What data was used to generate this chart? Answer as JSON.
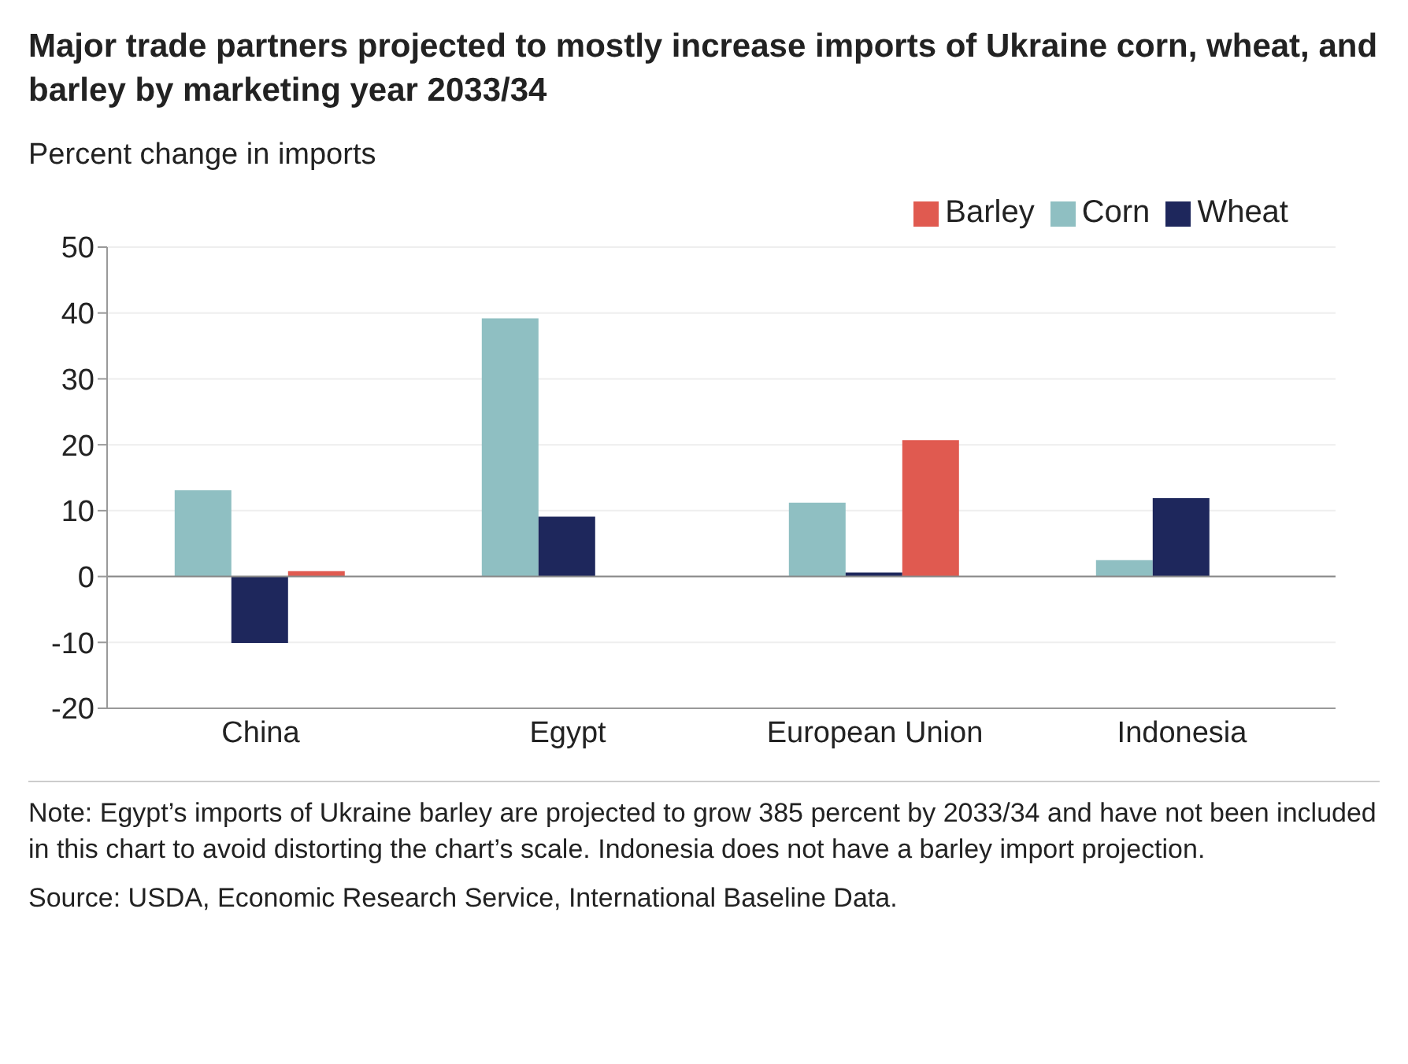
{
  "chart_data": {
    "type": "bar",
    "title": "Major trade partners projected to mostly increase imports of Ukraine corn, wheat, and barley by marketing year 2033/34",
    "ylabel": "Percent change in imports",
    "categories": [
      "China",
      "Egypt",
      "European Union",
      "Indonesia"
    ],
    "series": [
      {
        "name": "Corn",
        "color": "#8fbfc2",
        "values": [
          13.1,
          39.2,
          11.2,
          2.5
        ]
      },
      {
        "name": "Wheat",
        "color": "#1e275c",
        "values": [
          -10.1,
          9.1,
          0.6,
          11.9
        ]
      },
      {
        "name": "Barley",
        "color": "#e05a50",
        "values": [
          0.8,
          null,
          20.7,
          null
        ]
      }
    ],
    "ylim": [
      -20,
      50
    ],
    "yticks": [
      -20,
      -10,
      0,
      10,
      20,
      30,
      40,
      50
    ],
    "grid": "y",
    "legend": "top right",
    "annotations": [
      "Note: Egypt’s imports of Ukraine barley are projected to grow 385 percent by 2033/34 and have not been included in this chart to avoid distorting the chart’s scale. Indonesia does not have a barley import projection.",
      "Source: USDA, Economic Research Service, International Baseline Data."
    ]
  }
}
